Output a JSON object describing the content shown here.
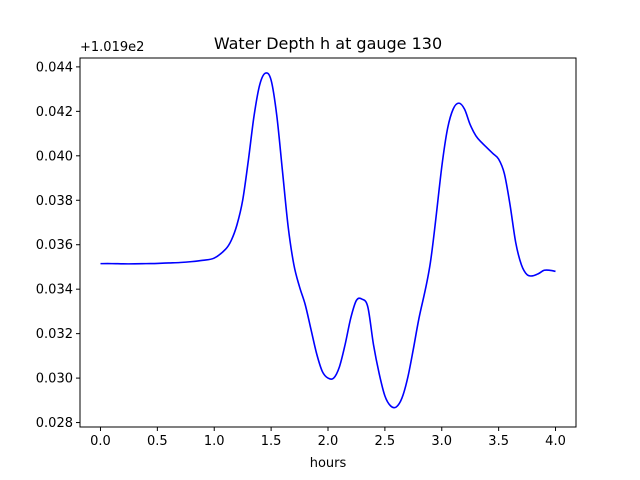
{
  "chart_data": {
    "type": "line",
    "title": "Water Depth h at gauge 130",
    "xlabel": "hours",
    "ylabel": "",
    "y_offset_text": "+1.019e2",
    "xlim": [
      -0.18,
      4.18
    ],
    "ylim": [
      0.0278,
      0.0444
    ],
    "x_ticks": [
      0.0,
      0.5,
      1.0,
      1.5,
      2.0,
      2.5,
      3.0,
      3.5,
      4.0
    ],
    "x_tick_labels": [
      "0.0",
      "0.5",
      "1.0",
      "1.5",
      "2.0",
      "2.5",
      "3.0",
      "3.5",
      "4.0"
    ],
    "y_ticks": [
      0.028,
      0.03,
      0.032,
      0.034,
      0.036,
      0.038,
      0.04,
      0.042,
      0.044
    ],
    "y_tick_labels": [
      "0.028",
      "0.030",
      "0.032",
      "0.034",
      "0.036",
      "0.038",
      "0.040",
      "0.042",
      "0.044"
    ],
    "grid": false,
    "line_color": "#0000ff",
    "series": [
      {
        "x": [
          0.0,
          0.1,
          0.2,
          0.3,
          0.4,
          0.5,
          0.6,
          0.7,
          0.8,
          0.9,
          1.0,
          1.1,
          1.15,
          1.2,
          1.25,
          1.3,
          1.35,
          1.4,
          1.45,
          1.5,
          1.55,
          1.6,
          1.65,
          1.7,
          1.75,
          1.8,
          1.85,
          1.9,
          1.95,
          2.0,
          2.05,
          2.1,
          2.15,
          2.2,
          2.25,
          2.3,
          2.35,
          2.4,
          2.45,
          2.5,
          2.55,
          2.6,
          2.65,
          2.7,
          2.75,
          2.8,
          2.9,
          3.0,
          3.05,
          3.1,
          3.15,
          3.2,
          3.25,
          3.3,
          3.35,
          3.4,
          3.45,
          3.5,
          3.55,
          3.6,
          3.65,
          3.7,
          3.75,
          3.8,
          3.85,
          3.9,
          3.95,
          4.0
        ],
        "y": [
          0.03515,
          0.03515,
          0.03514,
          0.03514,
          0.03515,
          0.03516,
          0.03518,
          0.0352,
          0.03524,
          0.0353,
          0.0354,
          0.0358,
          0.0362,
          0.0369,
          0.038,
          0.0398,
          0.0418,
          0.0432,
          0.04372,
          0.0434,
          0.0418,
          0.0393,
          0.0368,
          0.0351,
          0.0341,
          0.0333,
          0.0322,
          0.0311,
          0.0303,
          0.03,
          0.03,
          0.0305,
          0.0315,
          0.0327,
          0.0335,
          0.03355,
          0.0332,
          0.0315,
          0.0302,
          0.0292,
          0.02875,
          0.0287,
          0.0291,
          0.03,
          0.0313,
          0.0327,
          0.0352,
          0.0395,
          0.0412,
          0.0421,
          0.04237,
          0.0421,
          0.0414,
          0.0409,
          0.0406,
          0.04035,
          0.0401,
          0.03985,
          0.0392,
          0.0378,
          0.0361,
          0.0351,
          0.03465,
          0.0346,
          0.0347,
          0.03485,
          0.03485,
          0.0348
        ]
      }
    ]
  }
}
